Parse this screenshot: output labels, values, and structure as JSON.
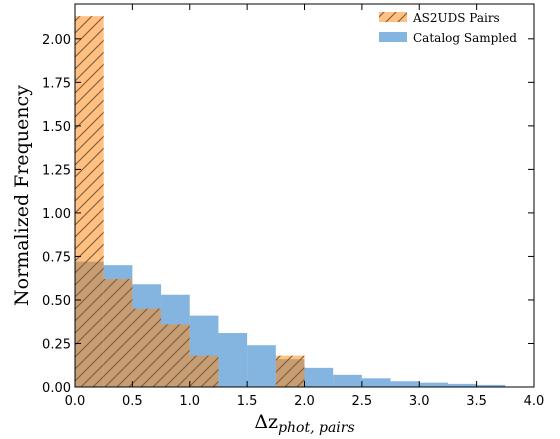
{
  "chart_data": {
    "type": "bar",
    "histogram": true,
    "bin_edges": [
      0.0,
      0.25,
      0.5,
      0.75,
      1.0,
      1.25,
      1.5,
      1.75,
      2.0,
      2.25,
      2.5,
      2.75,
      3.0,
      3.25,
      3.5,
      3.75,
      4.0
    ],
    "series": [
      {
        "name": "AS2UDS Pairs",
        "color": "#ff8c1a",
        "hatch": "diagonal",
        "values": [
          2.13,
          0.62,
          0.45,
          0.36,
          0.18,
          0.0,
          0.0,
          0.18,
          0.0,
          0.0,
          0.0,
          0.0,
          0.0,
          0.0,
          0.0,
          0.0
        ]
      },
      {
        "name": "Catalog Sampled",
        "color": "#5b9bd5",
        "hatch": "none",
        "values": [
          0.72,
          0.7,
          0.59,
          0.53,
          0.41,
          0.31,
          0.24,
          0.16,
          0.11,
          0.07,
          0.05,
          0.033,
          0.025,
          0.018,
          0.012,
          0.003
        ]
      }
    ],
    "x_ticks": [
      "0.0",
      "0.5",
      "1.0",
      "1.5",
      "2.0",
      "2.5",
      "3.0",
      "3.5",
      "4.0"
    ],
    "y_ticks": [
      "0.00",
      "0.25",
      "0.50",
      "0.75",
      "1.00",
      "1.25",
      "1.50",
      "1.75",
      "2.00"
    ],
    "xlim": [
      0,
      4
    ],
    "ylim": [
      0,
      2.2
    ],
    "xlabel": "Δz",
    "xlabel_sub": "phot, pairs",
    "ylabel": "Normalized Frequency",
    "legend_position": "top-right",
    "grid": false
  }
}
